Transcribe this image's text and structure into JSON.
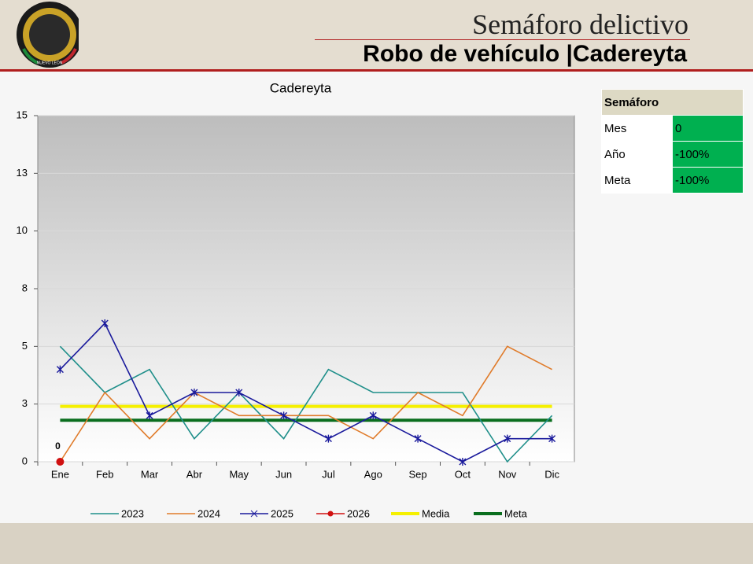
{
  "header": {
    "title": "Semáforo delictivo",
    "subtitle": "Robo de vehículo |Cadereyta",
    "logo_text": "NUEVO LEÓN"
  },
  "table": {
    "header": "Semáforo",
    "rows": [
      [
        "Mes",
        "0"
      ],
      [
        "Año",
        "-100%"
      ],
      [
        "Meta",
        "-100%"
      ]
    ]
  },
  "chart_data": {
    "type": "line",
    "title": "Cadereyta",
    "categories": [
      "Ene",
      "Feb",
      "Mar",
      "Abr",
      "May",
      "Jun",
      "Jul",
      "Ago",
      "Sep",
      "Oct",
      "Nov",
      "Dic"
    ],
    "ylim": [
      0,
      15
    ],
    "yticks": [
      0,
      {
        "value": 2.5,
        "label": "3"
      },
      5,
      {
        "value": 7.5,
        "label": "8"
      },
      10,
      {
        "value": 12.5,
        "label": "13"
      },
      15
    ],
    "grid": true,
    "series": [
      {
        "name": "2023",
        "color": "#1f8f8a",
        "values": [
          5,
          3,
          4,
          1,
          3,
          1,
          4,
          3,
          3,
          3,
          0,
          2
        ]
      },
      {
        "name": "2024",
        "color": "#e07b2a",
        "values": [
          0,
          3,
          1,
          3,
          2,
          2,
          2,
          1,
          3,
          2,
          5,
          4
        ]
      },
      {
        "name": "2025",
        "color": "#1a1a9c",
        "marker": "x",
        "values": [
          4,
          6,
          2,
          3,
          3,
          2,
          1,
          2,
          1,
          0,
          1,
          1
        ]
      },
      {
        "name": "2026",
        "color": "#d01010",
        "marker": "dot",
        "values": [
          0,
          null,
          null,
          null,
          null,
          null,
          null,
          null,
          null,
          null,
          null,
          null
        ],
        "value_labels": [
          "0",
          null,
          null,
          null,
          null,
          null,
          null,
          null,
          null,
          null,
          null,
          null
        ]
      }
    ],
    "lines": [
      {
        "name": "Media",
        "color": "#f5f000",
        "value": 2.4
      },
      {
        "name": "Meta",
        "color": "#0a6e1e",
        "value": 1.8
      }
    ]
  }
}
